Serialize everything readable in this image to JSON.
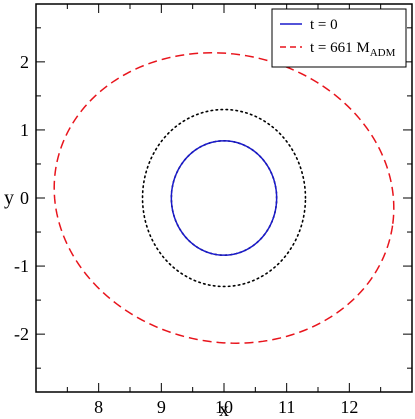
{
  "chart_data": {
    "type": "line",
    "xlabel": "x",
    "ylabel": "y",
    "xlim": [
      7.0,
      13.0
    ],
    "ylim": [
      -2.85,
      2.85
    ],
    "x_ticks": [
      8,
      9,
      10,
      11,
      12
    ],
    "y_ticks": [
      2,
      1,
      0,
      -1,
      -2
    ],
    "x_tick_labels": [
      "8",
      "9",
      "10",
      "11",
      "12"
    ],
    "y_tick_labels": [
      "2",
      "1",
      "0",
      "-1",
      "-2"
    ],
    "grid": false,
    "legend_position": "top-right",
    "series": [
      {
        "name": "t = 0",
        "name_main": "t = 0",
        "name_sub": "",
        "color": "#1a1acc",
        "style": "solid",
        "shape": "circle",
        "center": [
          10.0,
          0.0
        ],
        "radii": [
          0.84,
          0.84
        ],
        "tilt_deg": 0
      },
      {
        "name": "t = 661 M_ADM",
        "name_main": "t = 661 M",
        "name_sub": "ADM",
        "color": "#e8141c",
        "style": "dashed",
        "shape": "ellipse",
        "center": [
          10.0,
          0.0
        ],
        "radii": [
          2.72,
          2.12
        ],
        "tilt_deg": -8
      },
      {
        "name": "",
        "color": "#000000",
        "style": "dotted",
        "shape": "circle",
        "center": [
          10.0,
          0.0
        ],
        "radii": [
          1.3,
          1.3
        ],
        "tilt_deg": 0
      },
      {
        "name": "",
        "color": "#000000",
        "style": "dotted",
        "shape": "circle",
        "center": [
          10.0,
          0.0
        ],
        "radii": [
          0.84,
          0.84
        ],
        "tilt_deg": 0
      }
    ]
  }
}
